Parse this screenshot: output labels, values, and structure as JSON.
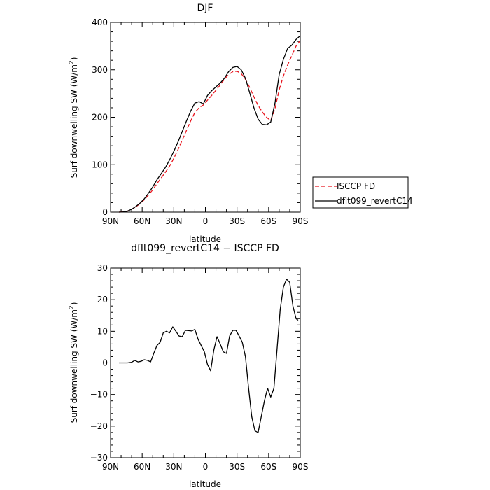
{
  "chart_data": [
    {
      "type": "line",
      "title": "DJF",
      "xlabel": "latitude",
      "ylabel": "Surf downwelling SW (W/m²)",
      "ylabel_parts": {
        "main": "Surf downwelling SW (W/m",
        "sup": "2",
        "end": ")"
      },
      "xlim": [
        -90,
        90
      ],
      "ylim": [
        0,
        400
      ],
      "x_ticks": [
        -90,
        -60,
        -30,
        0,
        30,
        60,
        90
      ],
      "x_tick_labels": [
        "90N",
        "60N",
        "30N",
        "0",
        "30S",
        "60S",
        "90S"
      ],
      "y_ticks": [
        0,
        100,
        200,
        300,
        400
      ],
      "y_tick_labels": [
        "0",
        "100",
        "200",
        "300",
        "400"
      ],
      "legend_position": "right of plot, lower",
      "series": [
        {
          "name": "ISCCP FD",
          "color": "#e8141d",
          "style": "dashed",
          "x": [
            -82,
            -78,
            -74,
            -70,
            -66,
            -62,
            -58,
            -54,
            -50,
            -46,
            -42,
            -38,
            -34,
            -30,
            -26,
            -22,
            -18,
            -14,
            -10,
            -6,
            -2,
            2,
            6,
            10,
            14,
            18,
            22,
            26,
            30,
            34,
            38,
            42,
            46,
            50,
            54,
            58,
            62,
            66,
            70,
            74,
            78,
            82,
            86,
            90
          ],
          "values": [
            0,
            0.5,
            2,
            6,
            11,
            18,
            26,
            36,
            47,
            60,
            72,
            84,
            97,
            113,
            132,
            152,
            172,
            192,
            210,
            220,
            226,
            236,
            246,
            257,
            268,
            280,
            290,
            296,
            297,
            292,
            280,
            263,
            243,
            225,
            211,
            200,
            193,
            218,
            258,
            287,
            310,
            330,
            350,
            362
          ]
        },
        {
          "name": "dflt099_revertC14",
          "color": "#000000",
          "style": "solid",
          "x": [
            -82,
            -78,
            -74,
            -70,
            -66,
            -62,
            -58,
            -54,
            -50,
            -46,
            -42,
            -38,
            -34,
            -30,
            -26,
            -22,
            -18,
            -14,
            -10,
            -6,
            -2,
            2,
            6,
            10,
            14,
            18,
            22,
            26,
            30,
            34,
            38,
            42,
            46,
            50,
            54,
            58,
            62,
            66,
            70,
            74,
            78,
            82,
            86,
            90
          ],
          "values": [
            0,
            0.5,
            2,
            6,
            12,
            19,
            28,
            40,
            53,
            68,
            81,
            94,
            110,
            128,
            148,
            170,
            192,
            213,
            230,
            233,
            228,
            246,
            256,
            264,
            272,
            282,
            296,
            305,
            307,
            300,
            282,
            252,
            220,
            196,
            185,
            184,
            190,
            230,
            290,
            322,
            345,
            352,
            364,
            372
          ]
        }
      ]
    },
    {
      "type": "line",
      "title": "dflt099_revertC14 − ISCCP FD",
      "xlabel": "latitude",
      "ylabel": "Surf downwelling SW (W/m²)",
      "ylabel_parts": {
        "main": "Surf downwelling SW (W/m",
        "sup": "2",
        "end": ")"
      },
      "xlim": [
        -90,
        90
      ],
      "ylim": [
        -30,
        30
      ],
      "x_ticks": [
        -90,
        -60,
        -30,
        0,
        30,
        60,
        90
      ],
      "x_tick_labels": [
        "90N",
        "60N",
        "30N",
        "0",
        "30S",
        "60S",
        "90S"
      ],
      "y_ticks": [
        -30,
        -20,
        -10,
        0,
        10,
        20,
        30
      ],
      "y_tick_labels": [
        "−30",
        "−20",
        "−10",
        "0",
        "10",
        "20",
        "30"
      ],
      "series": [
        {
          "color": "#000000",
          "style": "solid",
          "x": [
            -82,
            -78,
            -74,
            -70,
            -67,
            -64,
            -61,
            -58,
            -55,
            -52,
            -49,
            -46,
            -43,
            -40,
            -37,
            -34,
            -31,
            -28,
            -25,
            -22,
            -19,
            -16,
            -13,
            -10,
            -7,
            -4,
            -1,
            2,
            5,
            8,
            11,
            14,
            17,
            20,
            23,
            26,
            29,
            32,
            35,
            38,
            41,
            44,
            47,
            50,
            53,
            56,
            59,
            62,
            65,
            68,
            71,
            74,
            77,
            80,
            83,
            86,
            88
          ],
          "values": [
            0,
            0,
            0,
            0.2,
            0.8,
            0.3,
            0.5,
            1,
            0.8,
            0.3,
            3,
            5.5,
            6.5,
            9.5,
            10,
            9.5,
            11.4,
            10,
            8.5,
            8.3,
            10.3,
            10.2,
            10.1,
            10.6,
            7.5,
            5.5,
            3.5,
            -0.5,
            -2.5,
            4,
            8.3,
            6,
            3.5,
            3,
            8.5,
            10.3,
            10.3,
            8.5,
            6.5,
            2,
            -8,
            -17,
            -21.5,
            -22,
            -17,
            -12,
            -8,
            -10.8,
            -8,
            4.5,
            17,
            24,
            26.5,
            25.5,
            18,
            14,
            13.5
          ]
        }
      ]
    }
  ]
}
